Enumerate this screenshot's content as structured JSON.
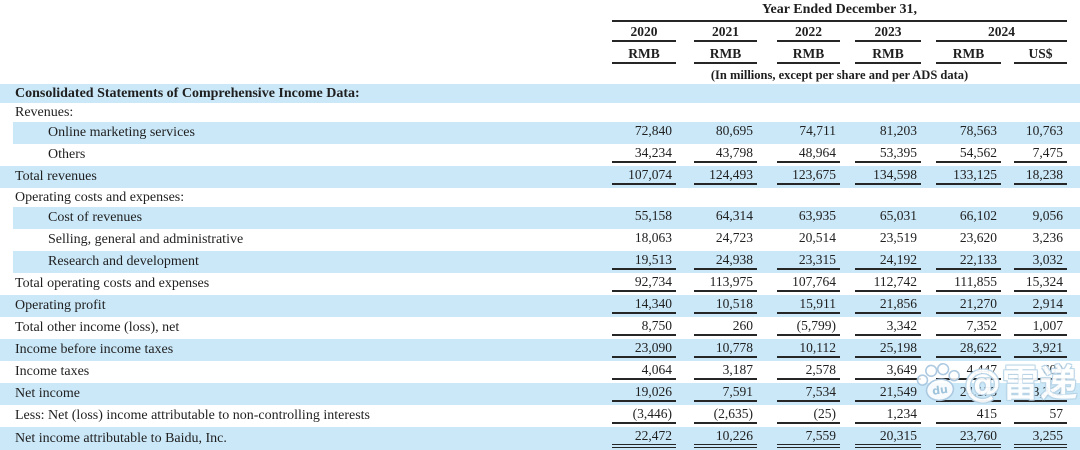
{
  "table": {
    "header": {
      "year_ended_label": "Year Ended December 31,",
      "years": [
        "2020",
        "2021",
        "2022",
        "2023",
        "2024"
      ],
      "currency_row": [
        "RMB",
        "RMB",
        "RMB",
        "RMB",
        "RMB",
        "US$"
      ],
      "units_note": "(In millions, except per share and per ADS data)"
    },
    "rows": [
      {
        "label": "Consolidated Statements of Comprehensive Income Data:",
        "indent": 0,
        "bold": true,
        "shade": true,
        "underline": "none",
        "values": [
          "",
          "",
          "",
          "",
          "",
          ""
        ]
      },
      {
        "label": "Revenues:",
        "indent": 0,
        "bold": false,
        "shade": false,
        "underline": "none",
        "values": [
          "",
          "",
          "",
          "",
          "",
          ""
        ]
      },
      {
        "label": "Online marketing services",
        "indent": 1,
        "bold": false,
        "shade": true,
        "underline": "none",
        "values": [
          "72,840",
          "80,695",
          "74,711",
          "81,203",
          "78,563",
          "10,763"
        ]
      },
      {
        "label": "Others",
        "indent": 1,
        "bold": false,
        "shade": false,
        "underline": "single",
        "values": [
          "34,234",
          "43,798",
          "48,964",
          "53,395",
          "54,562",
          "7,475"
        ]
      },
      {
        "label": "Total revenues",
        "indent": 0,
        "bold": false,
        "shade": true,
        "underline": "single",
        "values": [
          "107,074",
          "124,493",
          "123,675",
          "134,598",
          "133,125",
          "18,238"
        ]
      },
      {
        "label": "Operating costs and expenses:",
        "indent": 0,
        "bold": false,
        "shade": false,
        "underline": "none",
        "values": [
          "",
          "",
          "",
          "",
          "",
          ""
        ]
      },
      {
        "label": "Cost of revenues",
        "indent": 1,
        "bold": false,
        "shade": true,
        "underline": "none",
        "values": [
          "55,158",
          "64,314",
          "63,935",
          "65,031",
          "66,102",
          "9,056"
        ]
      },
      {
        "label": "Selling, general and administrative",
        "indent": 1,
        "bold": false,
        "shade": false,
        "underline": "none",
        "values": [
          "18,063",
          "24,723",
          "20,514",
          "23,519",
          "23,620",
          "3,236"
        ]
      },
      {
        "label": "Research and development",
        "indent": 1,
        "bold": false,
        "shade": true,
        "underline": "single",
        "values": [
          "19,513",
          "24,938",
          "23,315",
          "24,192",
          "22,133",
          "3,032"
        ]
      },
      {
        "label": "Total operating costs and expenses",
        "indent": 0,
        "bold": false,
        "shade": false,
        "underline": "single",
        "values": [
          "92,734",
          "113,975",
          "107,764",
          "112,742",
          "111,855",
          "15,324"
        ]
      },
      {
        "label": "Operating profit",
        "indent": 0,
        "bold": false,
        "shade": true,
        "underline": "single",
        "values": [
          "14,340",
          "10,518",
          "15,911",
          "21,856",
          "21,270",
          "2,914"
        ]
      },
      {
        "label": "Total other income (loss), net",
        "indent": 0,
        "bold": false,
        "shade": false,
        "underline": "single",
        "values": [
          "8,750",
          "260",
          "(5,799)",
          "3,342",
          "7,352",
          "1,007"
        ]
      },
      {
        "label": "Income before income taxes",
        "indent": 0,
        "bold": false,
        "shade": true,
        "underline": "single",
        "values": [
          "23,090",
          "10,778",
          "10,112",
          "25,198",
          "28,622",
          "3,921"
        ]
      },
      {
        "label": "Income taxes",
        "indent": 0,
        "bold": false,
        "shade": false,
        "underline": "single",
        "values": [
          "4,064",
          "3,187",
          "2,578",
          "3,649",
          "4,447",
          "609"
        ]
      },
      {
        "label": "Net income",
        "indent": 0,
        "bold": false,
        "shade": true,
        "underline": "single",
        "values": [
          "19,026",
          "7,591",
          "7,534",
          "21,549",
          "24,175",
          "3,312"
        ]
      },
      {
        "label": "Less: Net (loss) income attributable to non-controlling interests",
        "indent": 0,
        "bold": false,
        "shade": false,
        "underline": "single",
        "values": [
          "(3,446)",
          "(2,635)",
          "(25)",
          "1,234",
          "415",
          "57"
        ]
      },
      {
        "label": "Net income attributable to Baidu, Inc.",
        "indent": 0,
        "bold": false,
        "shade": true,
        "underline": "double",
        "values": [
          "22,472",
          "10,226",
          "7,559",
          "20,315",
          "23,760",
          "3,255"
        ]
      }
    ]
  },
  "watermark": {
    "paw_label": "du",
    "text": "@雷递"
  },
  "colors": {
    "stripe": "#cbe8f8",
    "text": "#1f1f1f",
    "rule_line": "#262626",
    "watermark_outline": "#b7d3e6"
  }
}
